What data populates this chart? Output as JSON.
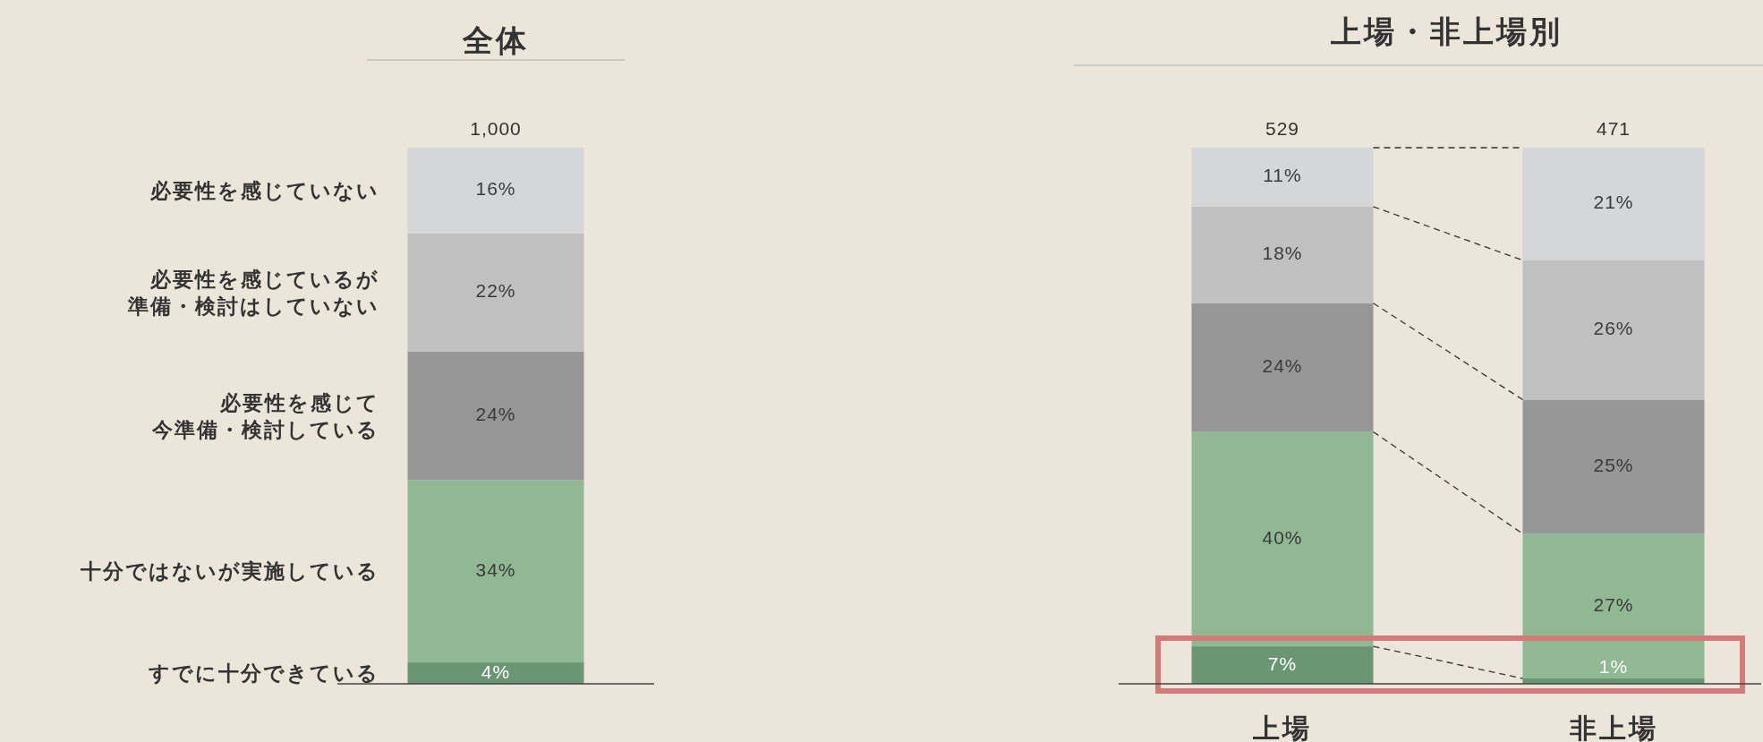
{
  "chart_data": [
    {
      "type": "bar",
      "title": "全体",
      "stacked": true,
      "categories": [
        null
      ],
      "annotations": [
        "1,000"
      ],
      "series": [
        {
          "name": "すでに十分できている",
          "color": "#6b9674",
          "values": [
            4
          ],
          "value_labels": [
            "4%"
          ]
        },
        {
          "name": "十分ではないが実施している",
          "color": "#8fb893",
          "values": [
            34
          ],
          "value_labels": [
            "34%"
          ]
        },
        {
          "name": "必要性を感じて今準備・検討している",
          "color": "#969696",
          "values": [
            24
          ],
          "value_labels": [
            "24%"
          ]
        },
        {
          "name": "必要性を感じているが準備・検討はしていない",
          "color": "#c0c0c0",
          "values": [
            22
          ],
          "value_labels": [
            "22%"
          ]
        },
        {
          "name": "必要性を感じていない",
          "color": "#d5d6d8",
          "values": [
            16
          ],
          "value_labels": [
            "16%"
          ]
        }
      ]
    },
    {
      "type": "bar",
      "title": "上場・非上場別",
      "stacked": true,
      "categories": [
        "上場",
        "非上場"
      ],
      "annotations": [
        "529",
        "471"
      ],
      "series": [
        {
          "color": "#6b9674",
          "values": [
            7,
            1
          ],
          "value_labels": [
            "7%",
            "1%"
          ]
        },
        {
          "color": "#8fb893",
          "values": [
            40,
            27
          ],
          "value_labels": [
            "40%",
            "27%"
          ]
        },
        {
          "color": "#969696",
          "values": [
            24,
            25
          ],
          "value_labels": [
            "24%",
            "25%"
          ]
        },
        {
          "color": "#c0c0c0",
          "values": [
            18,
            26
          ],
          "value_labels": [
            "18%",
            "26%"
          ]
        },
        {
          "color": "#d5d6d8",
          "values": [
            11,
            21
          ],
          "value_labels": [
            "11%",
            "21%"
          ]
        }
      ]
    }
  ]
}
